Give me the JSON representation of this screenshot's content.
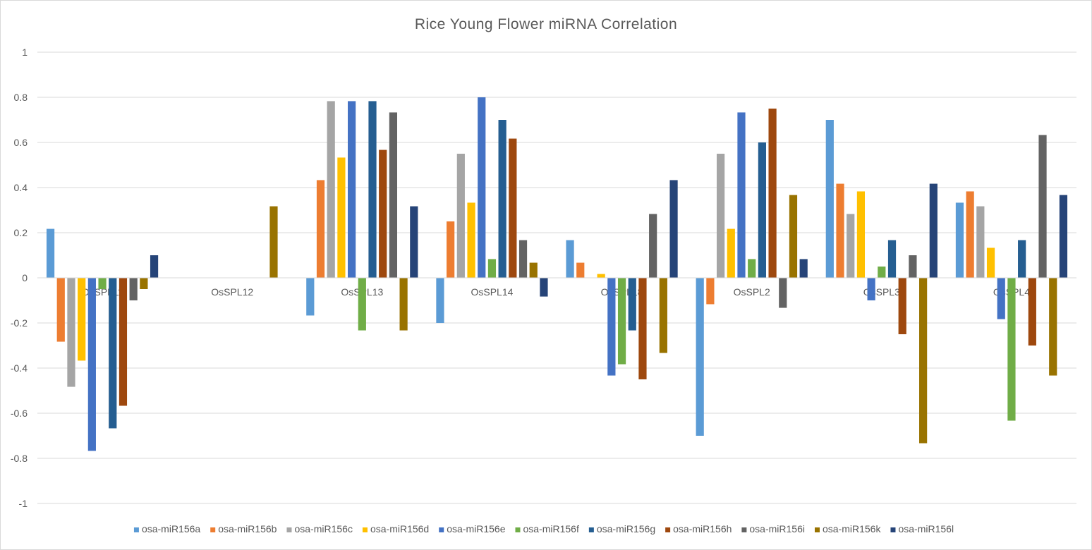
{
  "chart_data": {
    "type": "bar",
    "title": "Rice Young Flower miRNA Correlation",
    "xlabel": "",
    "ylabel": "",
    "ylim": [
      -1,
      1
    ],
    "yticks": [
      1,
      0.8,
      0.6,
      0.4,
      0.2,
      0,
      -0.2,
      -0.4,
      -0.6,
      -0.8,
      -1
    ],
    "grid": true,
    "legend_position": "bottom",
    "categories": [
      "OsSPL11",
      "OsSPL12",
      "OsSPL13",
      "OsSPL14",
      "OsSPL18",
      "OsSPL2",
      "OsSPL3",
      "OsSPL4"
    ],
    "series": [
      {
        "name": "osa-miR156a",
        "color": "#5b9bd5",
        "values": [
          0.217,
          0,
          -0.167,
          -0.2,
          0.167,
          -0.7,
          0.7,
          0.333
        ]
      },
      {
        "name": "osa-miR156b",
        "color": "#ed7d31",
        "values": [
          -0.283,
          0,
          0.433,
          0.25,
          0.067,
          -0.117,
          0.417,
          0.383
        ]
      },
      {
        "name": "osa-miR156c",
        "color": "#a5a5a5",
        "values": [
          -0.483,
          0,
          0.783,
          0.55,
          0,
          0.55,
          0.283,
          0.317
        ]
      },
      {
        "name": "osa-miR156d",
        "color": "#ffc000",
        "values": [
          -0.367,
          0,
          0.533,
          0.333,
          0.017,
          0.217,
          0.383,
          0.133
        ]
      },
      {
        "name": "osa-miR156e",
        "color": "#4472c4",
        "values": [
          -0.767,
          0,
          0.783,
          0.8,
          -0.433,
          0.733,
          -0.1,
          -0.183
        ]
      },
      {
        "name": "osa-miR156f",
        "color": "#70ad47",
        "values": [
          -0.05,
          0,
          -0.233,
          0.083,
          -0.383,
          0.083,
          0.05,
          -0.633
        ]
      },
      {
        "name": "osa-miR156g",
        "color": "#255e91",
        "values": [
          -0.667,
          0,
          0.783,
          0.7,
          -0.233,
          0.6,
          0.167,
          0.167
        ]
      },
      {
        "name": "osa-miR156h",
        "color": "#9e480e",
        "values": [
          -0.567,
          0,
          0.567,
          0.617,
          -0.45,
          0.75,
          -0.25,
          -0.3
        ]
      },
      {
        "name": "osa-miR156i",
        "color": "#636363",
        "values": [
          -0.1,
          0,
          0.733,
          0.167,
          0.283,
          -0.133,
          0.1,
          0.633
        ]
      },
      {
        "name": "osa-miR156k",
        "color": "#997300",
        "values": [
          -0.05,
          0.317,
          -0.233,
          0.067,
          -0.333,
          0.367,
          -0.733,
          -0.433
        ]
      },
      {
        "name": "osa-miR156l",
        "color": "#264478",
        "values": [
          0.1,
          0,
          0.317,
          -0.083,
          0.433,
          0.083,
          0.417,
          0.367
        ]
      }
    ]
  }
}
